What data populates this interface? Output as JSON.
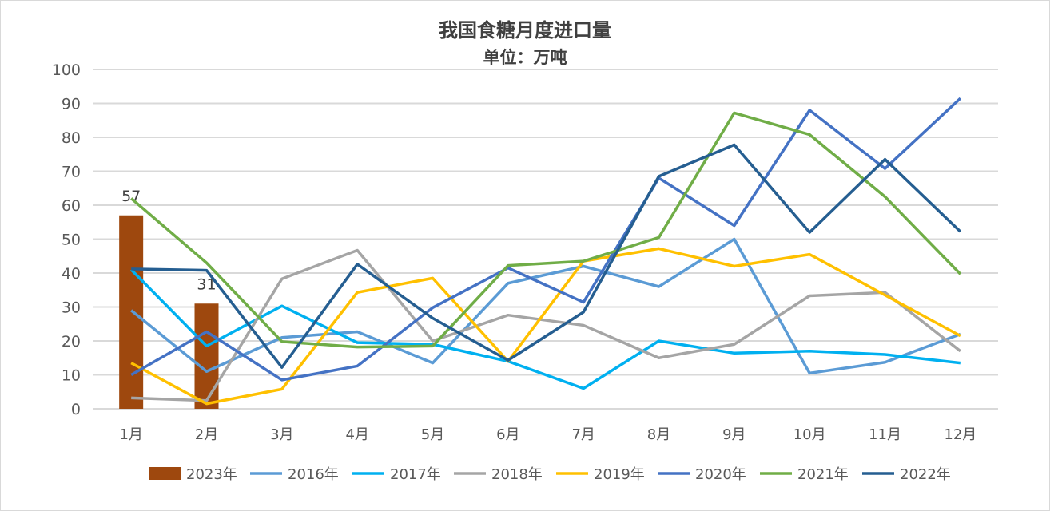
{
  "chart_data": {
    "type": "bar+line",
    "title": "我国食糖月度进口量",
    "subtitle": "单位：万吨",
    "categories": [
      "1月",
      "2月",
      "3月",
      "4月",
      "5月",
      "6月",
      "7月",
      "8月",
      "9月",
      "10月",
      "11月",
      "12月"
    ],
    "ylim": [
      0,
      100
    ],
    "yticks": [
      0,
      10,
      20,
      30,
      40,
      50,
      60,
      70,
      80,
      90,
      100
    ],
    "grid": true,
    "legend": "bottom",
    "bar_series": {
      "name": "2023年",
      "color": "#9E480E",
      "values": [
        57,
        31
      ],
      "labels": [
        "57",
        "31"
      ]
    },
    "series": [
      {
        "name": "2016年",
        "color": "#5B9BD5",
        "values": [
          29,
          11,
          21,
          22.7,
          13.5,
          37,
          42,
          36,
          50,
          10.5,
          13.7,
          22
        ]
      },
      {
        "name": "2017年",
        "color": "#00B0F0",
        "values": [
          41,
          18.5,
          30.3,
          19.5,
          19,
          14,
          6,
          20,
          16.4,
          17,
          16,
          13.5
        ]
      },
      {
        "name": "2018年",
        "color": "#A5A5A5",
        "values": [
          3.2,
          2.4,
          38.3,
          46.7,
          20,
          27.6,
          24.6,
          15,
          19,
          33.3,
          34.3,
          17
        ]
      },
      {
        "name": "2019年",
        "color": "#FFC000",
        "values": [
          13.5,
          1.5,
          5.8,
          34.3,
          38.5,
          14,
          43.5,
          47.2,
          42,
          45.5,
          33.5,
          21.5
        ]
      },
      {
        "name": "2020年",
        "color": "#4472C4",
        "values": [
          10,
          22.7,
          8.5,
          12.6,
          29.8,
          41.5,
          31.4,
          68,
          54,
          88,
          70.8,
          91.5
        ]
      },
      {
        "name": "2021年",
        "color": "#70AD47",
        "values": [
          62,
          43,
          19.8,
          18.2,
          18.5,
          42.2,
          43.5,
          50.5,
          87.2,
          80.8,
          62.5,
          39.7
        ]
      },
      {
        "name": "2022年",
        "color": "#255E91",
        "values": [
          41.2,
          40.8,
          12.2,
          42.6,
          26.7,
          14.3,
          28.5,
          68.5,
          77.8,
          52,
          73.5,
          52.2
        ]
      }
    ]
  }
}
